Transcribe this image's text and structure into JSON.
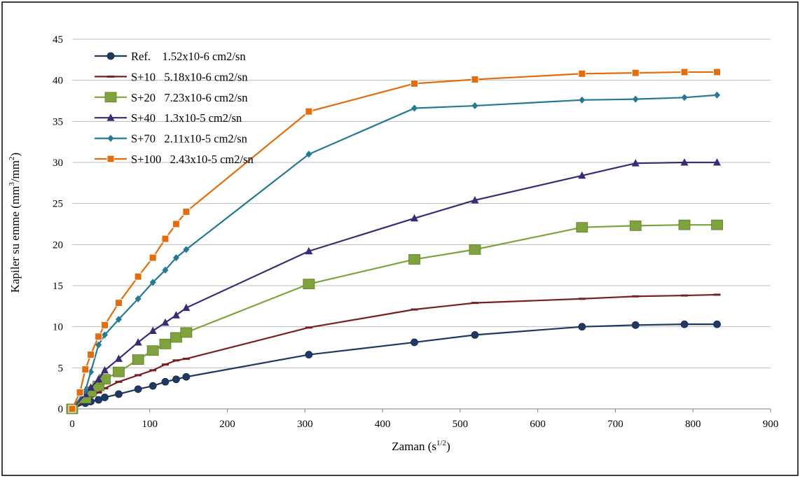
{
  "chart_data": {
    "type": "line",
    "xlabel": "Zaman (s",
    "xlabel_sup": "1/2",
    "xlabel_end": ")",
    "ylabel": "Kapiler su emme (mm",
    "ylabel_sup1": "3",
    "ylabel_mid": "/mm",
    "ylabel_sup2": "2",
    "ylabel_end": ")",
    "xlim": [
      0,
      900
    ],
    "ylim": [
      0,
      45
    ],
    "x_ticks": [
      "0",
      "100",
      "200",
      "300",
      "400",
      "500",
      "600",
      "700",
      "800",
      "900"
    ],
    "y_ticks": [
      "0",
      "5",
      "10",
      "15",
      "20",
      "25",
      "30",
      "35",
      "40",
      "45"
    ],
    "grid": "horizontal",
    "legend_position": "top-left",
    "series": [
      {
        "name": "Ref.    1.52x10-6 cm2/sn",
        "color": "#203864",
        "marker": "circle",
        "x": [
          0,
          17,
          24,
          34,
          42,
          60,
          85,
          104,
          120,
          134,
          147,
          305,
          441,
          519,
          657,
          726,
          789,
          831
        ],
        "y": [
          0,
          0.7,
          0.9,
          1.1,
          1.4,
          1.8,
          2.4,
          2.8,
          3.3,
          3.6,
          3.9,
          6.6,
          8.1,
          9.0,
          10.0,
          10.2,
          10.3,
          10.3
        ]
      },
      {
        "name": "S+10   5.18x10-6 cm2/sn",
        "color": "#7B1E1E",
        "marker": "dash",
        "x": [
          0,
          17,
          24,
          34,
          42,
          60,
          85,
          104,
          120,
          134,
          147,
          305,
          441,
          519,
          657,
          726,
          789,
          831
        ],
        "y": [
          0,
          1.0,
          1.5,
          2.0,
          2.5,
          3.3,
          4.1,
          4.7,
          5.4,
          5.9,
          6.1,
          9.9,
          12.1,
          12.9,
          13.4,
          13.7,
          13.8,
          13.9
        ]
      },
      {
        "name": "S+20   7.23x10-6 cm2/sn",
        "color": "#7FA33C",
        "marker": "square",
        "x": [
          0,
          17,
          24,
          34,
          42,
          60,
          85,
          104,
          120,
          134,
          147,
          305,
          441,
          519,
          657,
          726,
          789,
          831
        ],
        "y": [
          0,
          1.3,
          2.1,
          2.8,
          3.6,
          4.5,
          6.0,
          7.1,
          7.9,
          8.7,
          9.3,
          15.2,
          18.2,
          19.4,
          22.1,
          22.3,
          22.4,
          22.4
        ]
      },
      {
        "name": "S+40   1.3x10-5 cm2/sn",
        "color": "#3B2A78",
        "marker": "triangle",
        "x": [
          0,
          17,
          24,
          34,
          42,
          60,
          85,
          104,
          120,
          134,
          147,
          305,
          441,
          519,
          657,
          726,
          789,
          831
        ],
        "y": [
          0,
          1.8,
          2.6,
          3.6,
          4.7,
          6.1,
          8.1,
          9.5,
          10.5,
          11.4,
          12.3,
          19.2,
          23.2,
          25.4,
          28.4,
          29.9,
          30.0,
          30.0
        ]
      },
      {
        "name": "S+70   2.11x10-5 cm2/sn",
        "color": "#237A94",
        "marker": "diamond",
        "x": [
          0,
          17,
          24,
          34,
          42,
          60,
          85,
          104,
          120,
          134,
          147,
          305,
          441,
          519,
          657,
          726,
          789,
          831
        ],
        "y": [
          0,
          2.2,
          4.5,
          7.8,
          9.0,
          10.9,
          13.4,
          15.4,
          16.9,
          18.4,
          19.4,
          31.0,
          36.6,
          36.9,
          37.6,
          37.7,
          37.9,
          38.2
        ]
      },
      {
        "name": "S+100   2.43x10-5 cm2/sn",
        "color": "#E46C0A",
        "marker": "square-small",
        "x": [
          0,
          10,
          17,
          24,
          34,
          42,
          60,
          85,
          104,
          120,
          134,
          147,
          305,
          441,
          519,
          657,
          726,
          789,
          831
        ],
        "y": [
          0,
          2.0,
          4.8,
          6.6,
          8.8,
          10.2,
          12.9,
          16.1,
          18.4,
          20.7,
          22.5,
          24.0,
          36.2,
          39.6,
          40.1,
          40.8,
          40.9,
          41.0,
          41.0
        ]
      }
    ]
  }
}
